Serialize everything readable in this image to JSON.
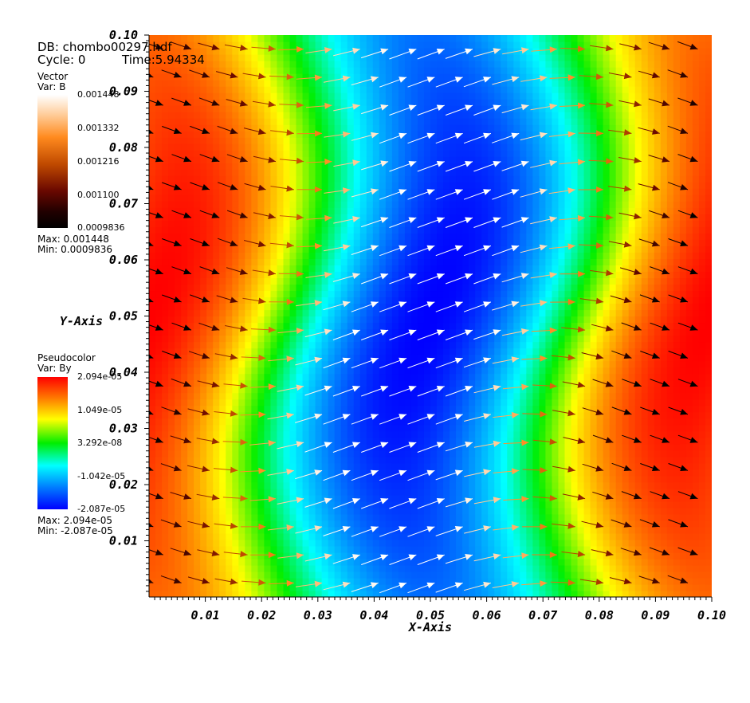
{
  "header": {
    "db": "DB: chombo00297.hdf",
    "cycle": "Cycle: 0",
    "time": "Time:5.94334"
  },
  "legends": {
    "vector": {
      "title": "Vector",
      "var": "Var: B",
      "ticks": [
        "0.001448",
        "0.001332",
        "0.001216",
        "0.001100",
        "0.0009836"
      ],
      "max": "Max:  0.001448",
      "min": "Min:  0.0009836"
    },
    "pseudocolor": {
      "title": "Pseudocolor",
      "var": "Var: By",
      "ticks": [
        "2.094e-05",
        "1.049e-05",
        "3.292e-08",
        "-1.042e-05",
        "-2.087e-05"
      ],
      "max": "Max:  2.094e-05",
      "min": "Min: -2.087e-05"
    }
  },
  "chart_data": {
    "type": "heatmap",
    "title": "",
    "xlabel": "X-Axis",
    "ylabel": "Y-Axis",
    "xlim": [
      0.0,
      0.1
    ],
    "ylim": [
      0.0,
      0.1
    ],
    "xticks": [
      "0.01",
      "0.02",
      "0.03",
      "0.04",
      "0.05",
      "0.06",
      "0.07",
      "0.08",
      "0.09",
      "0.10"
    ],
    "yticks": [
      "0.01",
      "0.02",
      "0.03",
      "0.04",
      "0.05",
      "0.06",
      "0.07",
      "0.08",
      "0.09",
      "0.10"
    ],
    "pseudocolor": {
      "variable": "By",
      "min": -2.087e-05,
      "max": 2.094e-05,
      "colormap": [
        "#0000ff",
        "#0080ff",
        "#00ffff",
        "#00ee00",
        "#ffff00",
        "#ff7a00",
        "#ff0000"
      ],
      "features": [
        {
          "kind": "maximum",
          "x": 0.0,
          "y": 0.05,
          "value": 2.094e-05
        },
        {
          "kind": "maximum",
          "x": 0.1,
          "y": 0.05,
          "value": 2.094e-05
        },
        {
          "kind": "minimum",
          "x": 0.05,
          "y": 0.05,
          "value": -2.087e-05
        }
      ]
    },
    "vector": {
      "variable": "B",
      "min": 0.0009836,
      "max": 0.001448,
      "colormap": [
        "#000000",
        "#6a0800",
        "#c04a00",
        "#ff8a1e",
        "#ffcc99",
        "#ffffff"
      ],
      "grid": [
        20,
        20
      ]
    }
  }
}
